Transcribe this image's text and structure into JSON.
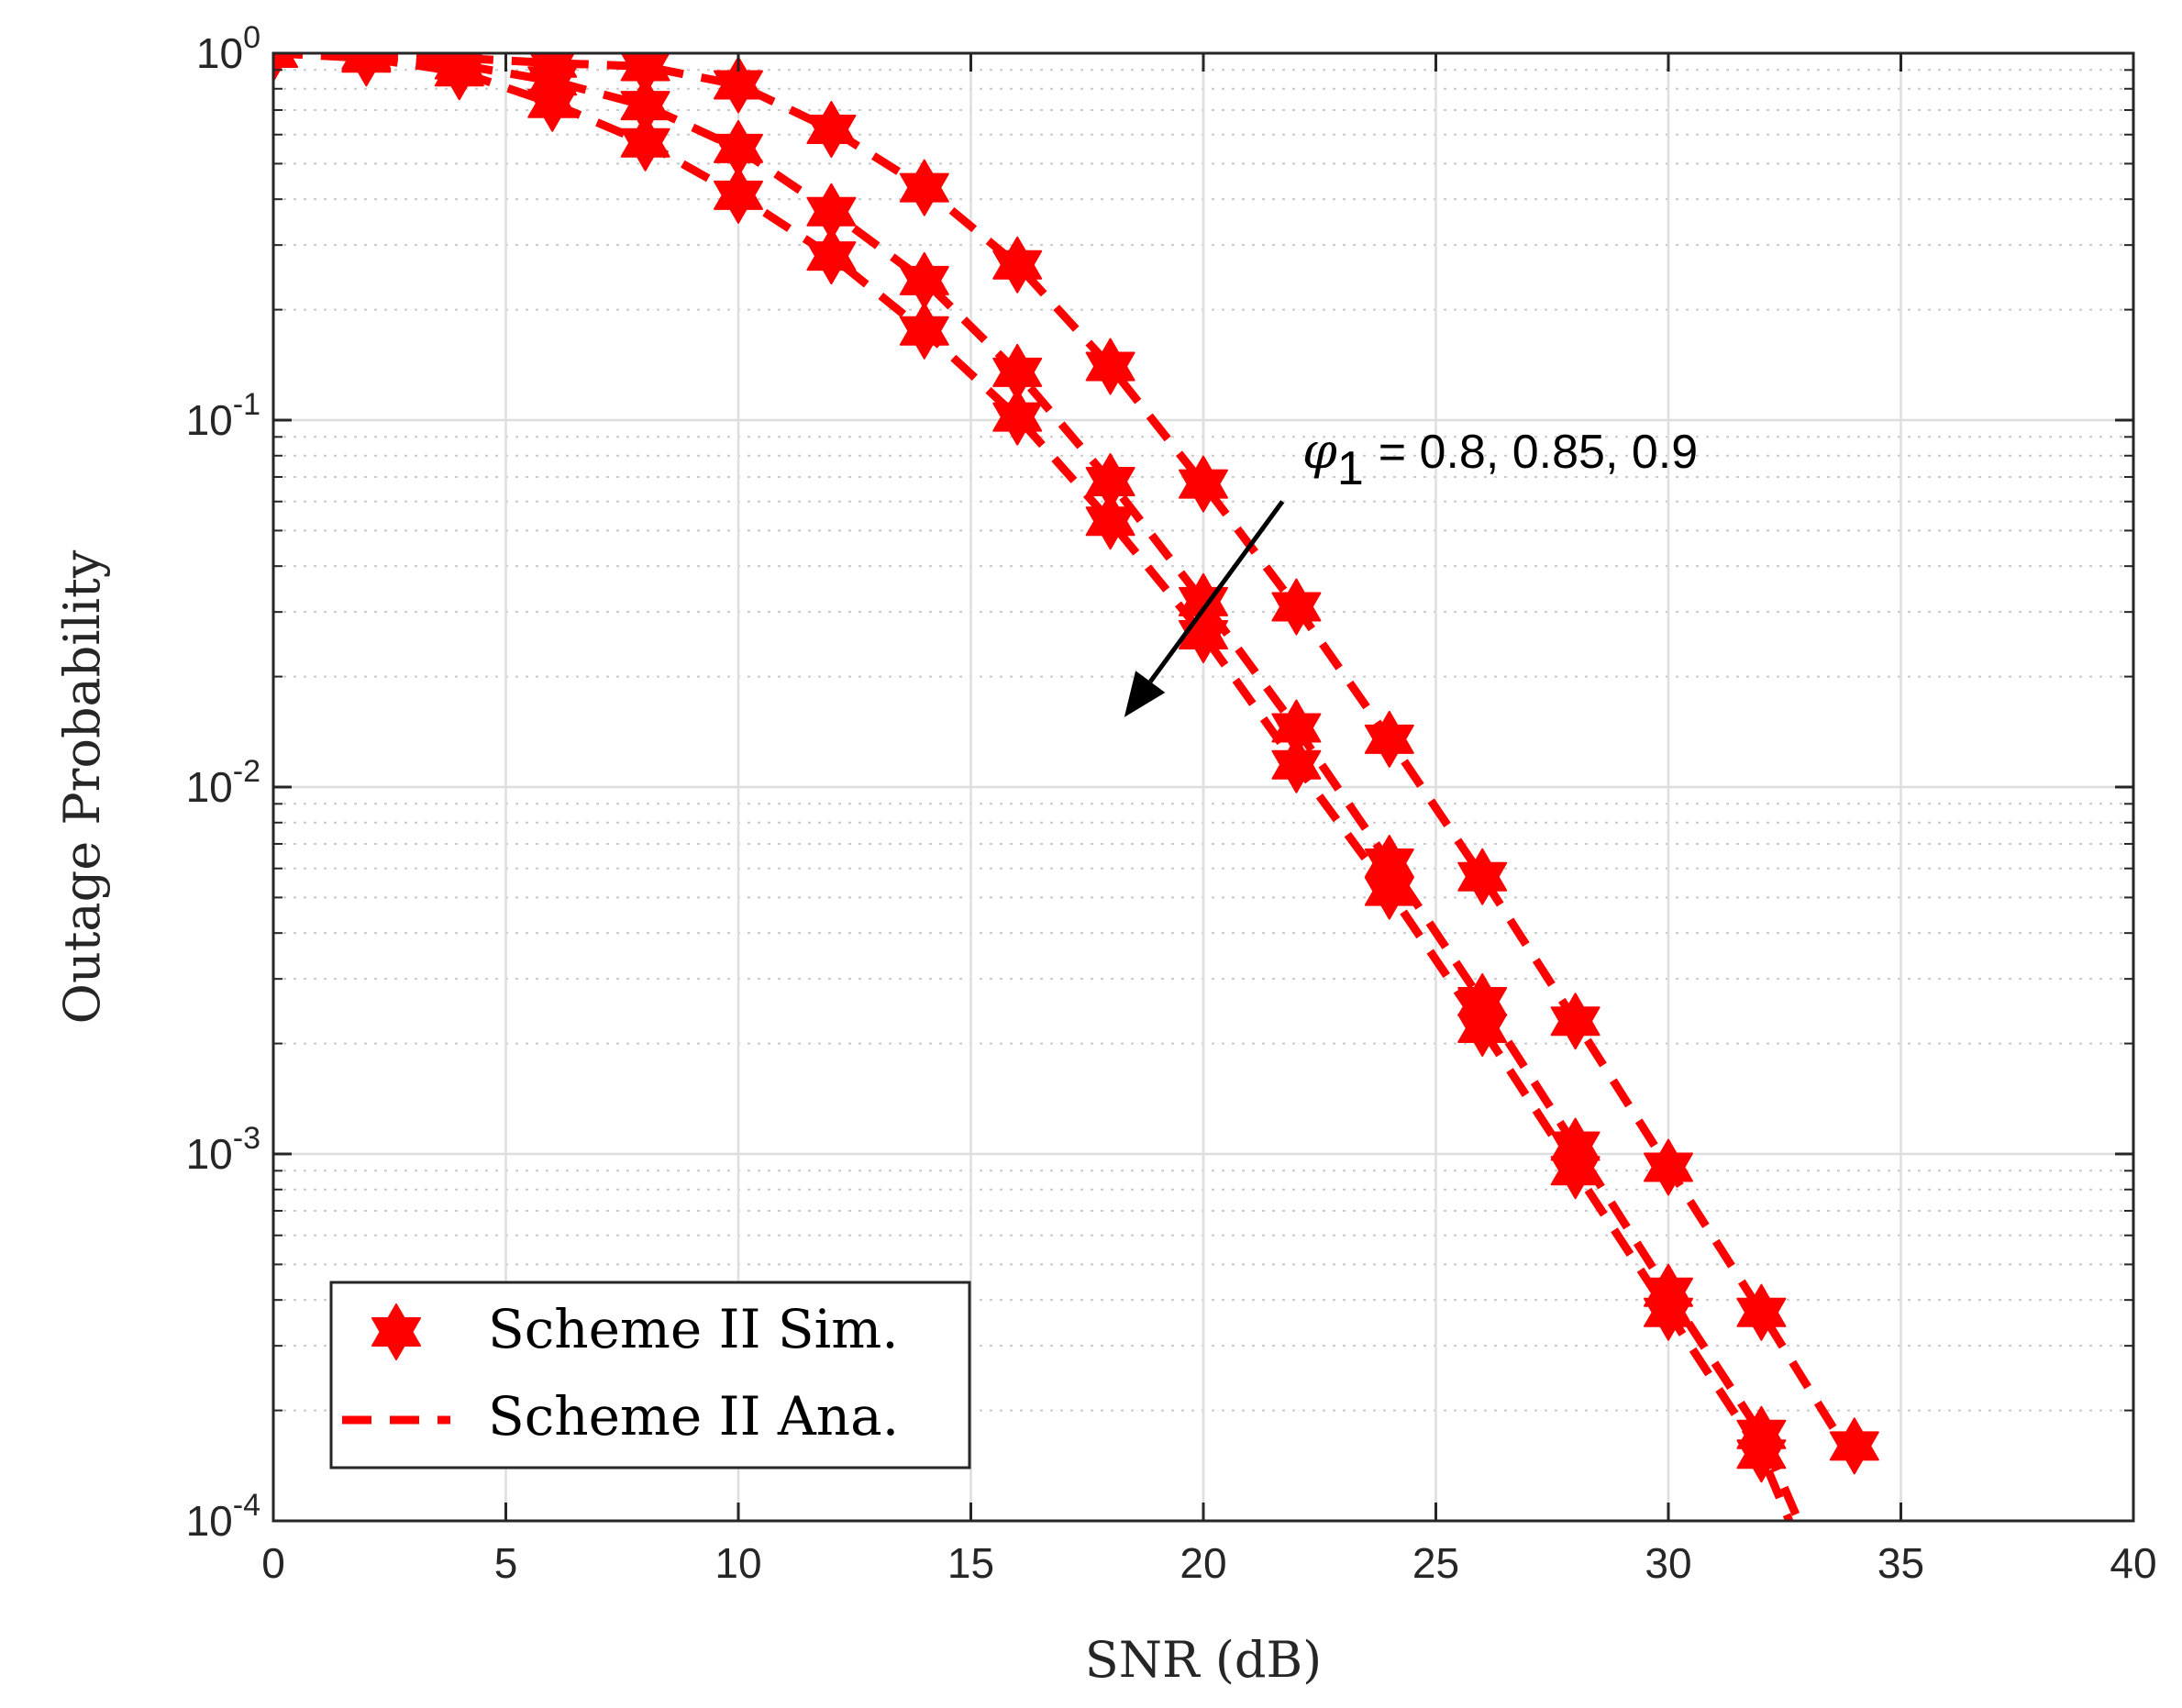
{
  "chart_data": {
    "type": "line",
    "title": "",
    "xlabel": "SNR (dB)",
    "ylabel": "Outage Probability",
    "xlim": [
      0,
      40
    ],
    "ylim": [
      0.0001,
      1
    ],
    "yscale": "log",
    "grid": true,
    "x_ticks": [
      0,
      5,
      10,
      15,
      20,
      25,
      30,
      35,
      40
    ],
    "x_tick_labels": [
      "0",
      "5",
      "10",
      "15",
      "20",
      "25",
      "30",
      "35",
      "40"
    ],
    "y_ticks": [
      1,
      0.1,
      0.01,
      0.001,
      0.0001
    ],
    "y_tick_labels": [
      {
        "base": "10",
        "exp": "0"
      },
      {
        "base": "10",
        "exp": "-1"
      },
      {
        "base": "10",
        "exp": "-2"
      },
      {
        "base": "10",
        "exp": "-3"
      },
      {
        "base": "10",
        "exp": "-4"
      }
    ],
    "color": "#ff0000",
    "legend": {
      "position": "bottom-left",
      "entries": [
        {
          "label": "Scheme II Sim.",
          "style": "hexagram-marker"
        },
        {
          "label": "Scheme II Ana.",
          "style": "dashed-line"
        }
      ]
    },
    "annotation": {
      "symbol": "φ",
      "subscript": "1",
      "text": "= 0.8, 0.85, 0.9",
      "arrow_from": {
        "x": 21.7,
        "y": 0.06
      },
      "arrow_to": {
        "x": 18.3,
        "y": 0.0155
      }
    },
    "series": [
      {
        "name": "φ1 = 0.8",
        "sim_x": [
          0,
          2,
          4,
          6,
          8,
          10,
          12,
          14,
          16,
          18,
          20,
          22,
          24,
          26,
          28,
          30,
          32,
          34
        ],
        "sim_y": [
          1.0,
          0.99,
          0.97,
          0.94,
          0.92,
          0.82,
          0.62,
          0.43,
          0.265,
          0.14,
          0.067,
          0.031,
          0.0135,
          0.0057,
          0.0023,
          0.00092,
          0.00037,
          0.00016
        ],
        "ana_x": [
          0,
          2,
          4,
          6,
          8,
          10,
          12,
          14,
          16,
          18,
          20,
          22,
          24,
          26,
          28,
          30,
          32,
          34
        ],
        "ana_y": [
          1.0,
          0.99,
          0.97,
          0.94,
          0.92,
          0.82,
          0.62,
          0.43,
          0.265,
          0.14,
          0.067,
          0.031,
          0.0135,
          0.0057,
          0.0023,
          0.00092,
          0.00037,
          0.000145
        ]
      },
      {
        "name": "φ1 = 0.85",
        "sim_x": [
          0,
          2,
          4,
          6,
          8,
          10,
          12,
          14,
          16,
          18,
          20,
          22,
          24,
          26,
          28,
          30,
          32
        ],
        "sim_y": [
          1.0,
          0.98,
          0.93,
          0.84,
          0.72,
          0.55,
          0.37,
          0.24,
          0.135,
          0.068,
          0.032,
          0.0145,
          0.0062,
          0.0026,
          0.00105,
          0.00042,
          0.000172
        ],
        "ana_x": [
          0,
          2,
          4,
          6,
          8,
          10,
          12,
          14,
          16,
          18,
          20,
          22,
          24,
          26,
          28,
          30,
          32,
          32.8
        ],
        "ana_y": [
          1.0,
          0.98,
          0.93,
          0.84,
          0.72,
          0.55,
          0.37,
          0.24,
          0.135,
          0.068,
          0.032,
          0.0145,
          0.0062,
          0.0026,
          0.00105,
          0.00042,
          0.000172,
          0.0001
        ]
      },
      {
        "name": "φ1 = 0.9",
        "sim_x": [
          0,
          2,
          4,
          6,
          8,
          10,
          12,
          14,
          16,
          18,
          20,
          22,
          24,
          26,
          28,
          30,
          32
        ],
        "sim_y": [
          1.0,
          0.97,
          0.89,
          0.73,
          0.57,
          0.41,
          0.28,
          0.175,
          0.102,
          0.053,
          0.026,
          0.0115,
          0.0052,
          0.0022,
          0.0009,
          0.00037,
          0.000152
        ],
        "ana_x": [
          0,
          2,
          4,
          6,
          8,
          10,
          12,
          14,
          16,
          18,
          20,
          22,
          24,
          26,
          28,
          30,
          32,
          32.6
        ],
        "ana_y": [
          1.0,
          0.97,
          0.89,
          0.73,
          0.57,
          0.41,
          0.28,
          0.175,
          0.102,
          0.053,
          0.026,
          0.0115,
          0.0052,
          0.0022,
          0.0009,
          0.00037,
          0.000152,
          0.0001
        ]
      }
    ]
  }
}
